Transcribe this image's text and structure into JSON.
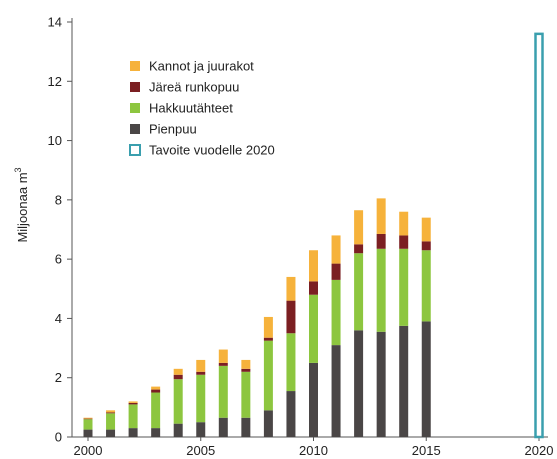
{
  "chart_data": {
    "type": "bar",
    "stacked": true,
    "title": "",
    "xlabel": "",
    "ylabel": "Miljoonaa",
    "ylabel_unit": "m",
    "ylabel_unit_sup": "3",
    "ylim": [
      0,
      14
    ],
    "yticks": [
      "0",
      "2",
      "4",
      "6",
      "8",
      "10",
      "12",
      "14"
    ],
    "xlim": [
      2000,
      2020
    ],
    "xticks": [
      "2000",
      "2005",
      "2010",
      "2015",
      "2020"
    ],
    "grid": false,
    "legend_position": "upper-left",
    "years": [
      2000,
      2001,
      2002,
      2003,
      2004,
      2005,
      2006,
      2007,
      2008,
      2009,
      2010,
      2011,
      2012,
      2013,
      2014,
      2015
    ],
    "series": [
      {
        "name": "Pienpuu",
        "color": "#4a4646",
        "values": [
          0.25,
          0.25,
          0.3,
          0.3,
          0.45,
          0.5,
          0.65,
          0.65,
          0.9,
          1.55,
          2.5,
          3.1,
          3.6,
          3.55,
          3.75,
          3.9
        ]
      },
      {
        "name": "Hakkuutähteet",
        "color": "#8dc63f",
        "values": [
          0.35,
          0.55,
          0.8,
          1.2,
          1.5,
          1.6,
          1.75,
          1.55,
          2.35,
          1.95,
          2.3,
          2.2,
          2.6,
          2.8,
          2.6,
          2.4
        ]
      },
      {
        "name": "Järeä runkopuu",
        "color": "#7b1f22",
        "values": [
          0.02,
          0.03,
          0.05,
          0.1,
          0.15,
          0.1,
          0.1,
          0.1,
          0.1,
          1.1,
          0.45,
          0.55,
          0.3,
          0.5,
          0.45,
          0.3
        ]
      },
      {
        "name": "Kannot ja juurakot",
        "color": "#f6b23b",
        "values": [
          0.03,
          0.07,
          0.05,
          0.1,
          0.2,
          0.4,
          0.45,
          0.3,
          0.7,
          0.8,
          1.05,
          0.95,
          1.15,
          1.2,
          0.8,
          0.8
        ]
      }
    ],
    "target": {
      "name": "Tavoite vuodelle 2020",
      "year": 2020,
      "value": 13.6,
      "color": "#3a9fae"
    }
  }
}
